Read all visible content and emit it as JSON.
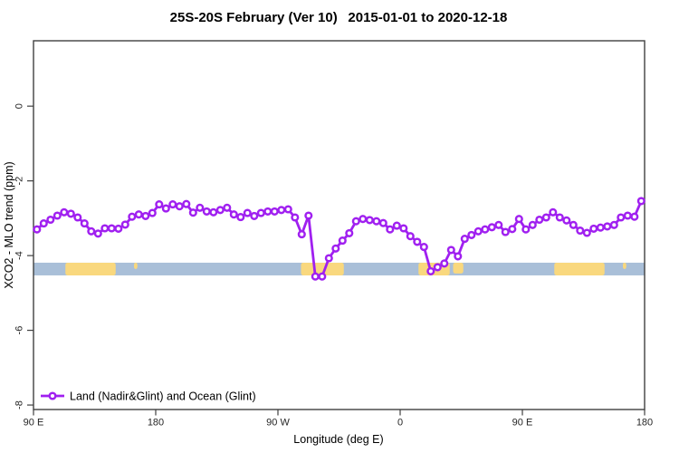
{
  "page": {
    "background": "#ffffff"
  },
  "header": {
    "title": "25S-20S February (Ver 10)  2015-01-01 to 2020-12-18"
  },
  "legend": {
    "label": "Land (Nadir&Glint) and Ocean (Glint)"
  },
  "colors": {
    "line": "#a020f0",
    "marker_fill": "#ffffff",
    "ocean": "#a9bfd8",
    "land": "#f9d87e",
    "frame": "#404040",
    "tick": "#404040",
    "text": "#000000"
  },
  "chart_data": {
    "type": "line",
    "title": "25S-20S February (Ver 10)  2015-01-01 to 2020-12-18",
    "xlabel": "Longitude (deg E)",
    "ylabel": "XCO2 - MLO trend (ppm)",
    "xlim": [
      90,
      540
    ],
    "ylim": [
      -8.12,
      1.75
    ],
    "grid": false,
    "legend_position": "bottom-left-inside",
    "x_ticks": [
      {
        "value": 90,
        "label": "90 E"
      },
      {
        "value": 180,
        "label": "180"
      },
      {
        "value": 270,
        "label": "90 W"
      },
      {
        "value": 360,
        "label": "0"
      },
      {
        "value": 450,
        "label": "90 E"
      },
      {
        "value": 540,
        "label": "180"
      }
    ],
    "y_ticks": [
      {
        "value": 0,
        "label": "0"
      },
      {
        "value": -2,
        "label": "-2"
      },
      {
        "value": -4,
        "label": "-4"
      },
      {
        "value": -6,
        "label": "-6"
      },
      {
        "value": -8,
        "label": "-8"
      }
    ],
    "series": [
      {
        "name": "Land (Nadir&Glint) and Ocean (Glint)",
        "marker": "open-circle",
        "x": [
          92.5,
          97.5,
          102.5,
          107.5,
          112.5,
          117.5,
          122.5,
          127.5,
          132.5,
          137.5,
          142.5,
          147.5,
          152.5,
          157.5,
          162.5,
          167.5,
          172.5,
          177.5,
          182.5,
          187.5,
          192.5,
          197.5,
          202.5,
          207.5,
          212.5,
          217.5,
          222.5,
          227.5,
          232.5,
          237.5,
          242.5,
          247.5,
          252.5,
          257.5,
          262.5,
          267.5,
          272.5,
          277.5,
          282.5,
          287.5,
          292.5,
          297.5,
          302.5,
          307.5,
          312.5,
          317.5,
          322.5,
          327.5,
          332.5,
          337.5,
          342.5,
          347.5,
          352.5,
          357.5,
          362.5,
          367.5,
          372.5,
          377.5,
          382.5,
          387.5,
          392.5,
          397.5,
          402.5,
          407.5,
          412.5,
          417.5,
          422.5,
          427.5,
          432.5,
          437.5,
          442.5,
          447.5,
          452.5,
          457.5,
          462.5,
          467.5,
          472.5,
          477.5,
          482.5,
          487.5,
          492.5,
          497.5,
          502.5,
          507.5,
          512.5,
          517.5,
          522.5,
          527.5,
          532.5,
          537.5
        ],
        "values": [
          -3.3,
          -3.14,
          -3.04,
          -2.93,
          -2.84,
          -2.88,
          -2.98,
          -3.14,
          -3.35,
          -3.41,
          -3.27,
          -3.27,
          -3.28,
          -3.17,
          -2.96,
          -2.9,
          -2.94,
          -2.86,
          -2.63,
          -2.74,
          -2.63,
          -2.68,
          -2.62,
          -2.85,
          -2.72,
          -2.82,
          -2.84,
          -2.78,
          -2.72,
          -2.9,
          -2.97,
          -2.86,
          -2.94,
          -2.86,
          -2.82,
          -2.82,
          -2.78,
          -2.76,
          -2.98,
          -3.43,
          -2.93,
          -4.56,
          -4.56,
          -4.07,
          -3.81,
          -3.6,
          -3.4,
          -3.08,
          -3.02,
          -3.05,
          -3.08,
          -3.13,
          -3.3,
          -3.2,
          -3.27,
          -3.48,
          -3.63,
          -3.77,
          -4.42,
          -4.31,
          -4.21,
          -3.85,
          -4.02,
          -3.55,
          -3.45,
          -3.35,
          -3.3,
          -3.24,
          -3.18,
          -3.37,
          -3.29,
          -3.02,
          -3.3,
          -3.18,
          -3.04,
          -2.98,
          -2.84,
          -2.98,
          -3.06,
          -3.18,
          -3.33,
          -3.39,
          -3.28,
          -3.25,
          -3.22,
          -3.18,
          -2.98,
          -2.93,
          -2.96,
          -2.54
        ]
      }
    ],
    "map_strip": {
      "description": "25S-20S latitude band map: ocean with land patches",
      "top": -4.19,
      "bottom": -4.53,
      "land_patches": [
        {
          "name": "australia",
          "from": 113.5,
          "to": 150.5,
          "h": 1
        },
        {
          "name": "new-caledonia",
          "from": 164.0,
          "to": 166.5,
          "h": 0.5
        },
        {
          "name": "south-america",
          "from": 287.0,
          "to": 318.5,
          "h": 1
        },
        {
          "name": "africa",
          "from": 373.5,
          "to": 396.5,
          "h": 1
        },
        {
          "name": "madagascar",
          "from": 399.0,
          "to": 406.5,
          "h": 0.85
        },
        {
          "name": "australia-east",
          "from": 473.5,
          "to": 510.5,
          "h": 1
        },
        {
          "name": "new-caledonia-east",
          "from": 524.0,
          "to": 526.5,
          "h": 0.5
        }
      ]
    }
  }
}
